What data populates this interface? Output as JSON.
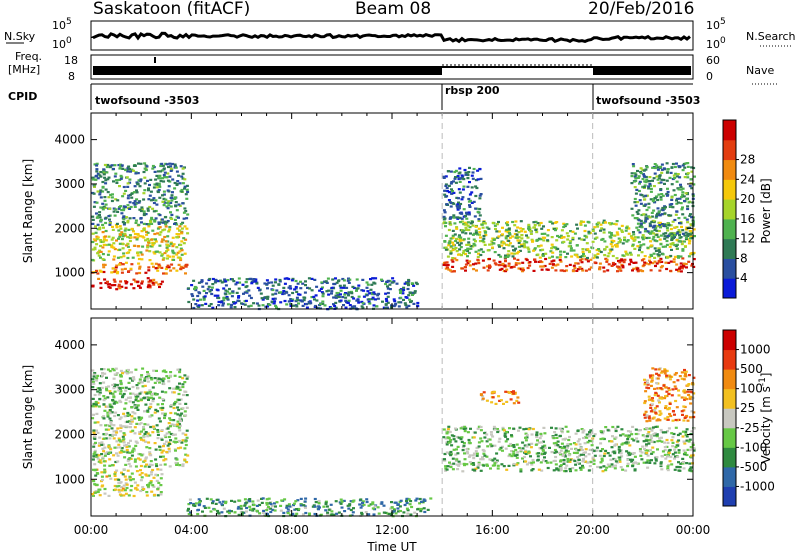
{
  "header": {
    "radar": "Saskatoon (fitACF)",
    "beam": "Beam 08",
    "date": "20/Feb/2016"
  },
  "strip": {
    "nsky_label": "N.Sky",
    "nsky_ticks": [
      "10^5",
      "10^0"
    ],
    "nsearch_label": "N.Search",
    "freq_label_1": "Freq.",
    "freq_label_2": "[MHz]",
    "freq_ticks": [
      "18",
      "8"
    ],
    "nave_ticks": [
      "60",
      "0"
    ],
    "nave_label": "Nave",
    "cpid_label": "CPID",
    "cpid_segments": [
      {
        "name": "twofsound -3503",
        "start_hour": 0,
        "end_hour": 14
      },
      {
        "name": "rbsp 200",
        "start_hour": 14,
        "end_hour": 20
      },
      {
        "name": "twofsound -3503",
        "start_hour": 20,
        "end_hour": 24
      }
    ]
  },
  "chart_data": [
    {
      "type": "heatmap",
      "title": "",
      "xlabel": "",
      "ylabel": "Slant Range [km]",
      "xlim": [
        0,
        24
      ],
      "ylim": [
        180,
        4600
      ],
      "yticks": [
        1000,
        2000,
        3000,
        4000
      ],
      "colorbar": {
        "label": "Power [dB]",
        "tick_labels": [
          "4",
          "8",
          "12",
          "16",
          "20",
          "24",
          "28"
        ],
        "colors": [
          "#0b1bd8",
          "#2a4fa0",
          "#2f7a55",
          "#4fb24f",
          "#a6d42a",
          "#f5c80a",
          "#f08a10",
          "#e33d10",
          "#cc0000"
        ]
      },
      "scatter_regions": [
        {
          "x": [
            0.0,
            2.8
          ],
          "y": [
            650,
            900
          ],
          "level": 0.9
        },
        {
          "x": [
            0.0,
            3.8
          ],
          "y": [
            1000,
            1250
          ],
          "level": 0.75
        },
        {
          "x": [
            0.0,
            3.8
          ],
          "y": [
            1300,
            2100
          ],
          "level": 0.55
        },
        {
          "x": [
            0.0,
            3.8
          ],
          "y": [
            2100,
            3500
          ],
          "level": 0.3
        },
        {
          "x": [
            3.8,
            13.0
          ],
          "y": [
            200,
            900
          ],
          "level": 0.2
        },
        {
          "x": [
            14.0,
            24.0
          ],
          "y": [
            1050,
            1350
          ],
          "level": 0.85
        },
        {
          "x": [
            14.0,
            24.0
          ],
          "y": [
            1350,
            2200
          ],
          "level": 0.45
        },
        {
          "x": [
            14.0,
            15.5
          ],
          "y": [
            2200,
            3400
          ],
          "level": 0.2
        },
        {
          "x": [
            21.5,
            24.0
          ],
          "y": [
            1800,
            3500
          ],
          "level": 0.3
        }
      ]
    },
    {
      "type": "heatmap",
      "title": "",
      "xlabel": "Time UT",
      "ylabel": "Slant Range [km]",
      "xlim": [
        0,
        24
      ],
      "ylim": [
        180,
        4600
      ],
      "yticks": [
        1000,
        2000,
        3000,
        4000
      ],
      "xticks": [
        "00:00",
        "04:00",
        "08:00",
        "12:00",
        "16:00",
        "20:00",
        "00:00"
      ],
      "colorbar": {
        "label": "Velocity [m s^-1]",
        "tick_labels": [
          "1000",
          "500",
          "100",
          "25",
          "-25",
          "-100",
          "-500",
          "-1000"
        ],
        "colors": [
          "#1f3fb0",
          "#2f68a8",
          "#2f8a40",
          "#66c845",
          "#c8c8c0",
          "#f2c020",
          "#f08a10",
          "#e83a10",
          "#cc0000"
        ]
      },
      "scatter_regions": [
        {
          "x": [
            0.0,
            2.8
          ],
          "y": [
            650,
            1250
          ],
          "level": 0.5
        },
        {
          "x": [
            0.0,
            3.8
          ],
          "y": [
            1300,
            2200
          ],
          "level": 0.45
        },
        {
          "x": [
            0.0,
            3.8
          ],
          "y": [
            2200,
            3500
          ],
          "level": 0.4
        },
        {
          "x": [
            3.8,
            13.5
          ],
          "y": [
            200,
            600
          ],
          "level": 0.3
        },
        {
          "x": [
            14.0,
            24.0
          ],
          "y": [
            1200,
            1600
          ],
          "level": 0.4
        },
        {
          "x": [
            14.0,
            24.0
          ],
          "y": [
            1600,
            2200
          ],
          "level": 0.4
        },
        {
          "x": [
            15.5,
            17.0
          ],
          "y": [
            2700,
            3000
          ],
          "level": 0.7
        },
        {
          "x": [
            22.0,
            24.0
          ],
          "y": [
            2300,
            3500
          ],
          "level": 0.7
        }
      ]
    }
  ]
}
